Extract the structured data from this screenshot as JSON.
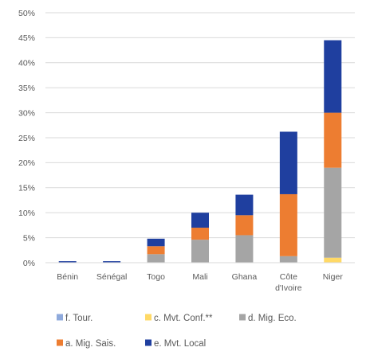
{
  "chart_data": {
    "type": "bar",
    "stacked": true,
    "title": "",
    "xlabel": "",
    "ylabel": "",
    "ylim": [
      0,
      50
    ],
    "y_ticks": [
      "0%",
      "5%",
      "10%",
      "15%",
      "20%",
      "25%",
      "30%",
      "35%",
      "40%",
      "45%",
      "50%"
    ],
    "y_tick_values": [
      0,
      5,
      10,
      15,
      20,
      25,
      30,
      35,
      40,
      45,
      50
    ],
    "grid": true,
    "legend_position": "bottom",
    "categories": [
      [
        "Bénin"
      ],
      [
        "Sénégal"
      ],
      [
        "Togo"
      ],
      [
        "Mali"
      ],
      [
        "Ghana"
      ],
      [
        "Côte",
        "d'Ivoire"
      ],
      [
        "Niger"
      ]
    ],
    "series": [
      {
        "name": "f. Tour.",
        "color": "#8FAADC",
        "values": [
          0,
          0,
          0,
          0,
          0,
          0,
          0
        ]
      },
      {
        "name": "c. Mvt. Conf.**",
        "color": "#FFD966",
        "values": [
          0,
          0,
          0,
          0,
          0,
          0,
          1.0
        ]
      },
      {
        "name": "d. Mig. Eco.",
        "color": "#A5A5A5",
        "values": [
          0,
          0,
          1.7,
          4.6,
          5.5,
          1.3,
          18.0
        ]
      },
      {
        "name": "a. Mig. Sais.",
        "color": "#ED7D31",
        "values": [
          0,
          0,
          1.6,
          2.4,
          4.0,
          12.4,
          11.0
        ]
      },
      {
        "name": "e. Mvt. Local",
        "color": "#1F3F9F",
        "values": [
          0.3,
          0.3,
          1.5,
          3.0,
          4.1,
          12.5,
          14.5
        ]
      }
    ]
  }
}
